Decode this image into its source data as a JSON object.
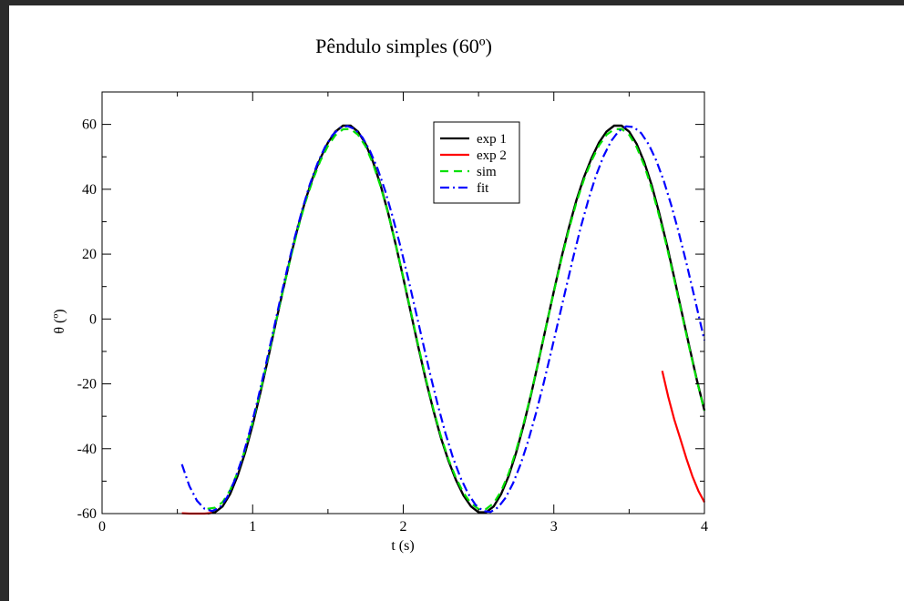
{
  "chart_data": {
    "type": "line",
    "title": "Pêndulo simples (60º)",
    "xlabel": "t (s)",
    "ylabel": "θ (º)",
    "xlim": [
      0,
      4
    ],
    "ylim": [
      -60,
      70
    ],
    "xticks": [
      0,
      1,
      2,
      3,
      4
    ],
    "xtick_labels": [
      "0",
      "1",
      "2",
      "3",
      "4"
    ],
    "yticks": [
      -60,
      -40,
      -20,
      0,
      20,
      40,
      60
    ],
    "ytick_labels": [
      "-60",
      "-40",
      "-20",
      "0",
      "20",
      "40",
      "60"
    ],
    "grid": false,
    "legend_position": "top-right",
    "series": [
      {
        "name": "exp 1",
        "color": "#000000",
        "style": "solid",
        "x": [
          0.7,
          0.75,
          0.8,
          0.85,
          0.9,
          0.95,
          1.0,
          1.05,
          1.1,
          1.15,
          1.2,
          1.25,
          1.3,
          1.35,
          1.4,
          1.45,
          1.5,
          1.55,
          1.6,
          1.65,
          1.7,
          1.75,
          1.8,
          1.85,
          1.9,
          1.95,
          2.0,
          2.05,
          2.1,
          2.15,
          2.2,
          2.25,
          2.3,
          2.35,
          2.4,
          2.45,
          2.5,
          2.55,
          2.6,
          2.65,
          2.7,
          2.75,
          2.8,
          2.85,
          2.9,
          2.95,
          3.0,
          3.05,
          3.1,
          3.15,
          3.2,
          3.25,
          3.3,
          3.35,
          3.4,
          3.45,
          3.5,
          3.55,
          3.6,
          3.65,
          3.7,
          3.75,
          3.8,
          3.85,
          3.9,
          3.95,
          4.0
        ],
        "y": [
          -60.0,
          -59.6,
          -57.8,
          -54.0,
          -48.4,
          -41.2,
          -32.6,
          -23.0,
          -12.7,
          -2.0,
          8.6,
          18.8,
          28.2,
          36.6,
          43.7,
          49.6,
          54.4,
          57.8,
          59.6,
          59.6,
          57.8,
          54.0,
          48.4,
          41.2,
          32.6,
          23.0,
          12.7,
          2.0,
          -8.6,
          -18.8,
          -28.2,
          -36.6,
          -43.7,
          -49.6,
          -54.4,
          -57.8,
          -59.6,
          -59.6,
          -57.8,
          -54.0,
          -48.4,
          -41.2,
          -32.6,
          -23.0,
          -12.7,
          -2.0,
          8.6,
          18.8,
          28.2,
          36.6,
          43.7,
          49.6,
          54.4,
          57.8,
          59.6,
          59.6,
          57.8,
          54.0,
          48.4,
          41.2,
          32.6,
          23.0,
          12.7,
          2.0,
          -8.6,
          -18.8,
          -28.2
        ]
      },
      {
        "name": "exp 2",
        "color": "#ff0000",
        "style": "solid",
        "x": [
          0.53,
          0.58,
          0.63,
          0.68,
          0.73,
          3.72,
          3.76,
          3.8,
          3.84,
          3.88,
          3.92,
          3.96,
          4.0
        ],
        "y": [
          -59.9,
          -60.0,
          -60.0,
          -60.0,
          -59.8,
          -16.0,
          -24.0,
          -31.0,
          -37.0,
          -43.0,
          -48.5,
          -53.0,
          -56.5
        ]
      },
      {
        "name": "sim",
        "color": "#00e000",
        "style": "dashed",
        "x": [
          0.7,
          0.75,
          0.8,
          0.85,
          0.9,
          0.95,
          1.0,
          1.05,
          1.1,
          1.15,
          1.2,
          1.25,
          1.3,
          1.35,
          1.4,
          1.45,
          1.5,
          1.55,
          1.6,
          1.65,
          1.7,
          1.75,
          1.8,
          1.85,
          1.9,
          1.95,
          2.0,
          2.05,
          2.1,
          2.15,
          2.2,
          2.25,
          2.3,
          2.35,
          2.4,
          2.45,
          2.5,
          2.55,
          2.6,
          2.65,
          2.7,
          2.75,
          2.8,
          2.85,
          2.9,
          2.95,
          3.0,
          3.05,
          3.1,
          3.15,
          3.2,
          3.25,
          3.3,
          3.35,
          3.4,
          3.45,
          3.5,
          3.55,
          3.6,
          3.65,
          3.7,
          3.75,
          3.8,
          3.85,
          3.9,
          3.95,
          4.0
        ],
        "y": [
          -58.5,
          -58.2,
          -56.5,
          -52.8,
          -47.3,
          -40.2,
          -31.8,
          -22.5,
          -12.3,
          -1.8,
          8.5,
          18.5,
          27.7,
          36.0,
          43.0,
          48.8,
          53.4,
          56.7,
          58.5,
          58.6,
          56.8,
          53.2,
          47.8,
          40.8,
          32.4,
          23.0,
          12.8,
          2.3,
          -8.2,
          -18.4,
          -27.8,
          -36.1,
          -43.2,
          -49.0,
          -53.6,
          -56.9,
          -58.6,
          -58.6,
          -56.8,
          -53.1,
          -47.6,
          -40.5,
          -32.1,
          -22.7,
          -12.5,
          -2.0,
          8.4,
          18.3,
          27.6,
          35.9,
          43.0,
          48.8,
          53.5,
          56.8,
          58.5,
          58.6,
          56.8,
          53.0,
          47.4,
          40.2,
          31.7,
          22.3,
          12.1,
          1.5,
          -9.0,
          -19.0,
          -28.3
        ]
      },
      {
        "name": "fit",
        "color": "#0000ff",
        "style": "dashdot",
        "x": [
          0.53,
          0.58,
          0.63,
          0.68,
          0.73,
          0.78,
          0.83,
          0.88,
          0.93,
          0.98,
          1.03,
          1.08,
          1.13,
          1.18,
          1.23,
          1.28,
          1.33,
          1.38,
          1.43,
          1.48,
          1.53,
          1.58,
          1.63,
          1.68,
          1.73,
          1.78,
          1.83,
          1.88,
          1.93,
          1.98,
          2.03,
          2.08,
          2.13,
          2.18,
          2.23,
          2.28,
          2.33,
          2.38,
          2.43,
          2.48,
          2.53,
          2.58,
          2.63,
          2.68,
          2.73,
          2.78,
          2.83,
          2.88,
          2.93,
          2.98,
          3.03,
          3.08,
          3.13,
          3.18,
          3.23,
          3.28,
          3.33,
          3.38,
          3.43,
          3.48,
          3.53,
          3.58,
          3.63,
          3.68,
          3.73,
          3.78,
          3.83,
          3.88,
          3.93,
          3.98,
          4.0
        ],
        "y": [
          -44.8,
          -51.5,
          -56.0,
          -58.5,
          -59.2,
          -58.2,
          -55.0,
          -49.8,
          -43.0,
          -34.8,
          -25.6,
          -15.6,
          -5.2,
          5.4,
          15.6,
          25.2,
          33.9,
          41.5,
          47.9,
          53.0,
          56.7,
          58.9,
          59.5,
          58.5,
          55.9,
          51.8,
          46.3,
          39.5,
          31.5,
          22.6,
          13.0,
          3.0,
          -7.2,
          -17.2,
          -26.6,
          -35.2,
          -42.7,
          -48.9,
          -53.8,
          -57.3,
          -59.2,
          -59.5,
          -58.1,
          -55.1,
          -50.6,
          -44.7,
          -37.5,
          -29.3,
          -20.2,
          -10.6,
          -0.6,
          9.4,
          19.2,
          28.5,
          36.9,
          44.2,
          50.2,
          54.8,
          57.9,
          59.4,
          59.2,
          57.3,
          53.8,
          48.9,
          42.6,
          35.1,
          26.6,
          17.3,
          7.5,
          -2.6,
          -6.6
        ]
      }
    ]
  }
}
